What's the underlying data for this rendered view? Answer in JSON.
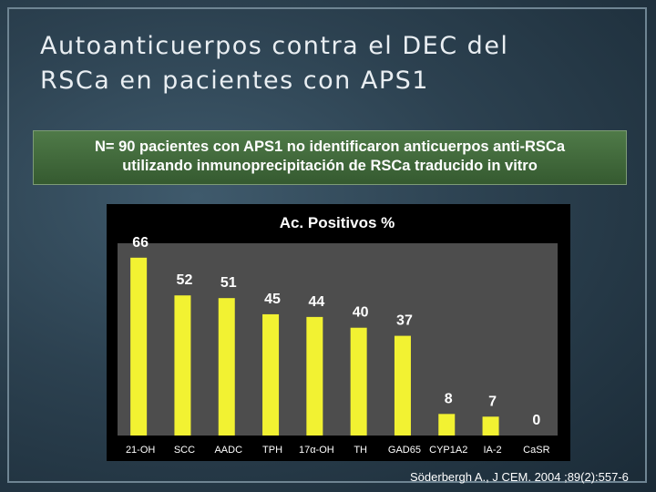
{
  "slide": {
    "title_line1": "Autoanticuerpos contra el DEC del",
    "title_line2": "RSCa en pacientes con APS1",
    "subtitle_line1": "N= 90 pacientes con APS1 no identificaron anticuerpos anti-RSCa",
    "subtitle_line2": "utilizando inmunoprecipitación de RSCa traducido in vitro",
    "citation": "Söderbergh A., J CEM. 2004 ;89(2):557-6"
  },
  "chart_data": {
    "type": "bar",
    "title": "Ac. Positivos %",
    "categories": [
      "21-OH",
      "SCC",
      "AADC",
      "TPH",
      "17α-OH",
      "TH",
      "GAD65",
      "CYP1A2",
      "IA-2",
      "CaSR"
    ],
    "values": [
      66,
      52,
      51,
      45,
      44,
      40,
      37,
      8,
      7,
      0
    ],
    "ylim": [
      0,
      70
    ],
    "bar_color": "#f2f232",
    "plot_background": "#4d4d4d",
    "grid": false,
    "xlabel": "",
    "ylabel": ""
  }
}
